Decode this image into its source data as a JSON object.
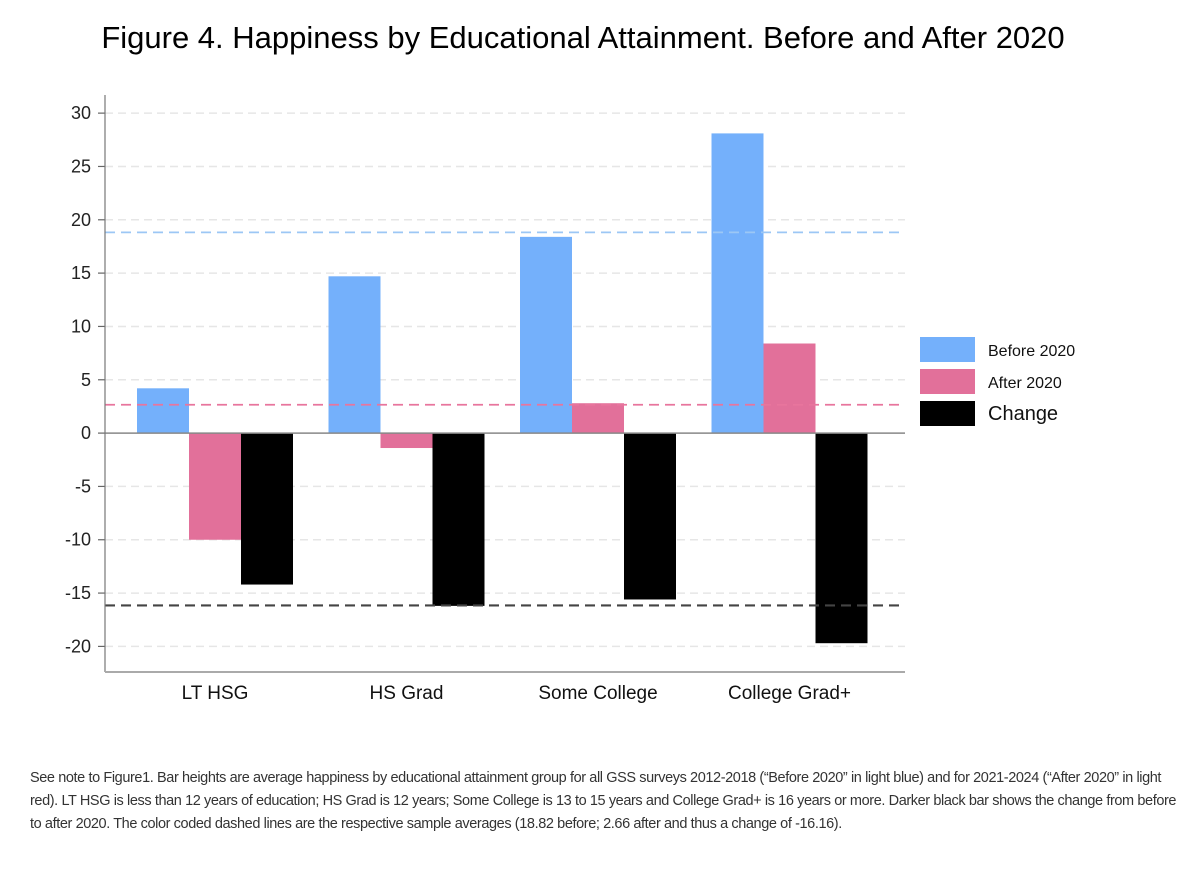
{
  "chart_data": {
    "type": "bar",
    "title": "Figure 4. Happiness by Educational Attainment.  Before and After 2020",
    "categories": [
      "LT HSG",
      "HS Grad",
      "Some College",
      "College Grad+"
    ],
    "series": [
      {
        "name": "Before 2020",
        "color": "#74b0fb",
        "values": [
          4.2,
          14.7,
          18.4,
          28.1
        ]
      },
      {
        "name": "After 2020",
        "color": "#e2709a",
        "values": [
          -10.0,
          -1.4,
          2.8,
          8.4
        ]
      },
      {
        "name": "Change",
        "color": "#000000",
        "values": [
          -14.2,
          -16.2,
          -15.6,
          -19.7
        ]
      }
    ],
    "reference_lines": [
      {
        "label": "Before 2020 average",
        "value": 18.82,
        "color": "#9cc7f5"
      },
      {
        "label": "After 2020 average",
        "value": 2.66,
        "color": "#e8759d"
      },
      {
        "label": "Change average",
        "value": -16.16,
        "color": "#444444"
      }
    ],
    "yticks": [
      30,
      25,
      20,
      15,
      10,
      5,
      0,
      -5,
      -10,
      -15,
      -20
    ],
    "ylim": [
      -22.4,
      31.7
    ],
    "xlabel": "",
    "ylabel": "",
    "grid": true,
    "legend_position": "right"
  },
  "note": "See note to Figure1. Bar heights are average happiness by educational attainment group for all GSS surveys 2012-2018 (“Before 2020” in light blue) and for 2021-2024 (“After 2020” in light red).   LT HSG is less than 12 years of education; HS Grad is 12 years; Some College is 13 to 15 years and College Grad+ is 16 years or more.  Darker black bar shows the change from before to after 2020. The color coded dashed lines are the respective sample averages (18.82 before; 2.66 after and thus a change of -16.16)."
}
